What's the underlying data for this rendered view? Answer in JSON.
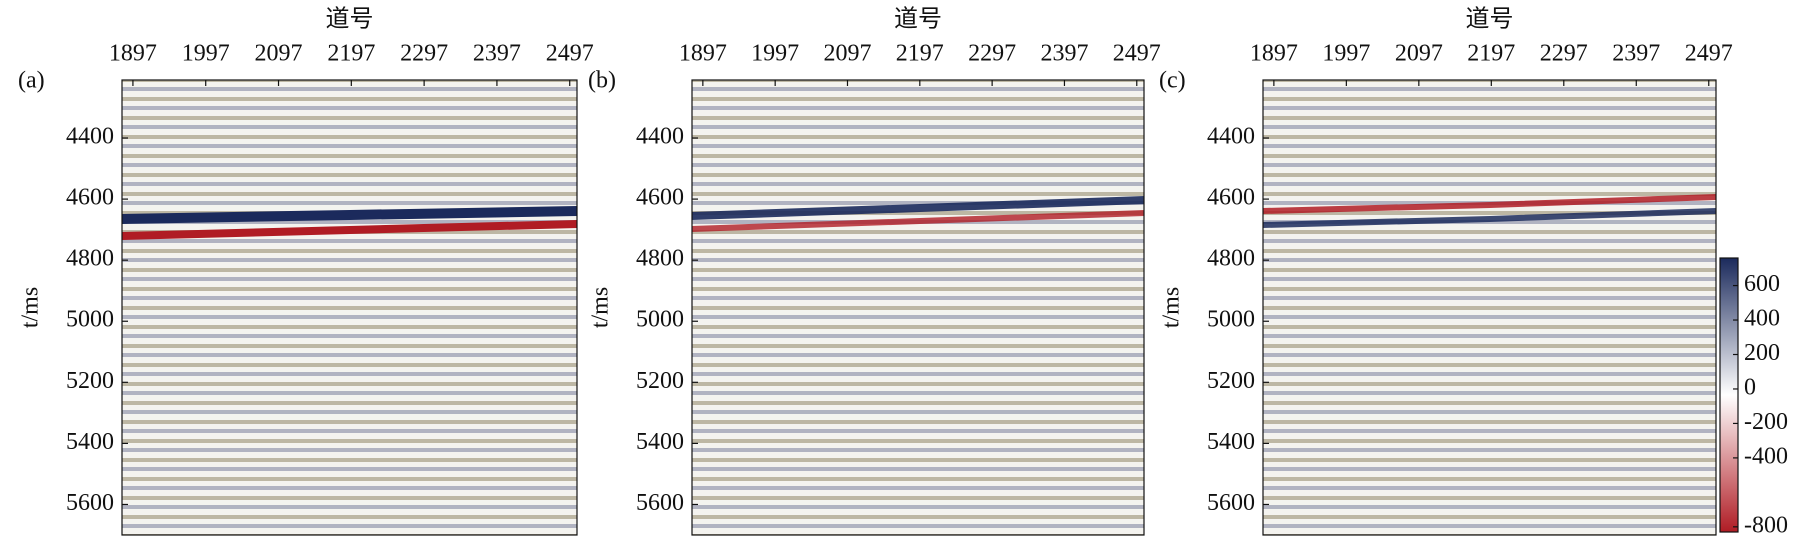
{
  "chart_data": [
    {
      "type": "heatmap",
      "panel_label": "(a)",
      "title": "道号",
      "ylabel": "t/ms",
      "xlim": [
        1882,
        2507
      ],
      "xticks": [
        1897,
        1997,
        2097,
        2197,
        2297,
        2397,
        2497
      ],
      "ylim": [
        5700,
        4210
      ],
      "yticks": [
        4400,
        4600,
        4800,
        5000,
        5200,
        5400,
        5600
      ]
    },
    {
      "type": "heatmap",
      "panel_label": "(b)",
      "title": "道号",
      "ylabel": "t/ms",
      "xlim": [
        1882,
        2507
      ],
      "xticks": [
        1897,
        1997,
        2097,
        2197,
        2297,
        2397,
        2497
      ],
      "ylim": [
        5700,
        4210
      ],
      "yticks": [
        4400,
        4600,
        4800,
        5000,
        5200,
        5400,
        5600
      ]
    },
    {
      "type": "heatmap",
      "panel_label": "(c)",
      "title": "道号",
      "ylabel": "t/ms",
      "xlim": [
        1882,
        2507
      ],
      "xticks": [
        1897,
        1997,
        2097,
        2197,
        2297,
        2397,
        2497
      ],
      "ylim": [
        5700,
        4210
      ],
      "yticks": [
        4400,
        4600,
        4800,
        5000,
        5200,
        5400,
        5600
      ]
    },
    {
      "type": "colorbar",
      "clim": [
        -830,
        760
      ],
      "colors": [
        "#b01c24",
        "#ffffff",
        "#1b2a5c"
      ],
      "ticks": [
        600,
        400,
        200,
        0,
        -200,
        -400,
        -800
      ]
    }
  ]
}
